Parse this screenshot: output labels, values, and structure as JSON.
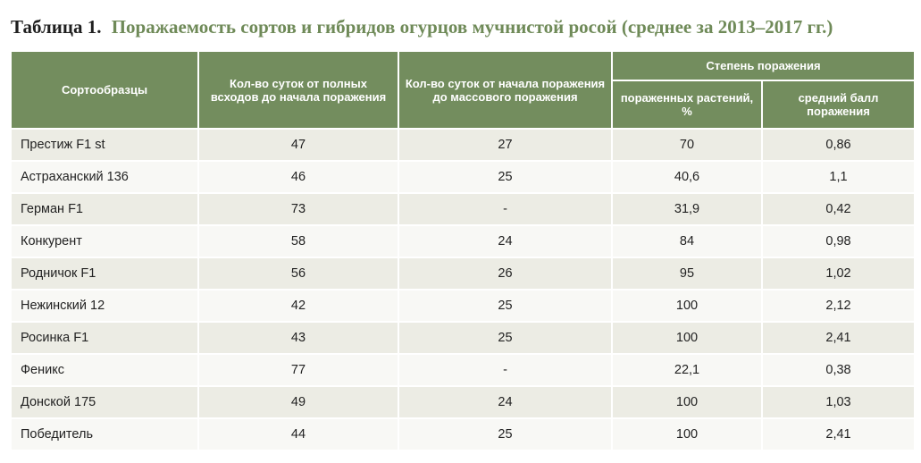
{
  "caption": {
    "label": "Таблица 1.",
    "title": "Поражаемость сортов и гибридов огурцов мучнистой росой (среднее за 2013–2017 гг.)"
  },
  "header": {
    "col1": "Сортообразцы",
    "col2": "Кол-во суток от полных всходов до начала поражения",
    "col3": "Кол-во суток от начала поражения до массового поражения",
    "group": "Степень поражения",
    "col4": "пораженных растений, %",
    "col5": "средний балл поражения"
  },
  "rows": [
    {
      "name": "Престиж F1 st",
      "days_to_start": "47",
      "days_to_mass": "27",
      "affected_pct": "70",
      "score": "0,86"
    },
    {
      "name": "Астраханский 136",
      "days_to_start": "46",
      "days_to_mass": "25",
      "affected_pct": "40,6",
      "score": "1,1"
    },
    {
      "name": "Герман F1",
      "days_to_start": "73",
      "days_to_mass": "-",
      "affected_pct": "31,9",
      "score": "0,42"
    },
    {
      "name": "Конкурент",
      "days_to_start": "58",
      "days_to_mass": "24",
      "affected_pct": "84",
      "score": "0,98"
    },
    {
      "name": "Родничок F1",
      "days_to_start": "56",
      "days_to_mass": "26",
      "affected_pct": "95",
      "score": "1,02"
    },
    {
      "name": "Нежинский 12",
      "days_to_start": "42",
      "days_to_mass": "25",
      "affected_pct": "100",
      "score": "2,12"
    },
    {
      "name": "Росинка F1",
      "days_to_start": "43",
      "days_to_mass": "25",
      "affected_pct": "100",
      "score": "2,41"
    },
    {
      "name": "Феникс",
      "days_to_start": "77",
      "days_to_mass": "-",
      "affected_pct": "22,1",
      "score": "0,38"
    },
    {
      "name": "Донской 175",
      "days_to_start": "49",
      "days_to_mass": "24",
      "affected_pct": "100",
      "score": "1,03"
    },
    {
      "name": "Победитель",
      "days_to_start": "44",
      "days_to_mass": "25",
      "affected_pct": "100",
      "score": "2,41"
    }
  ]
}
